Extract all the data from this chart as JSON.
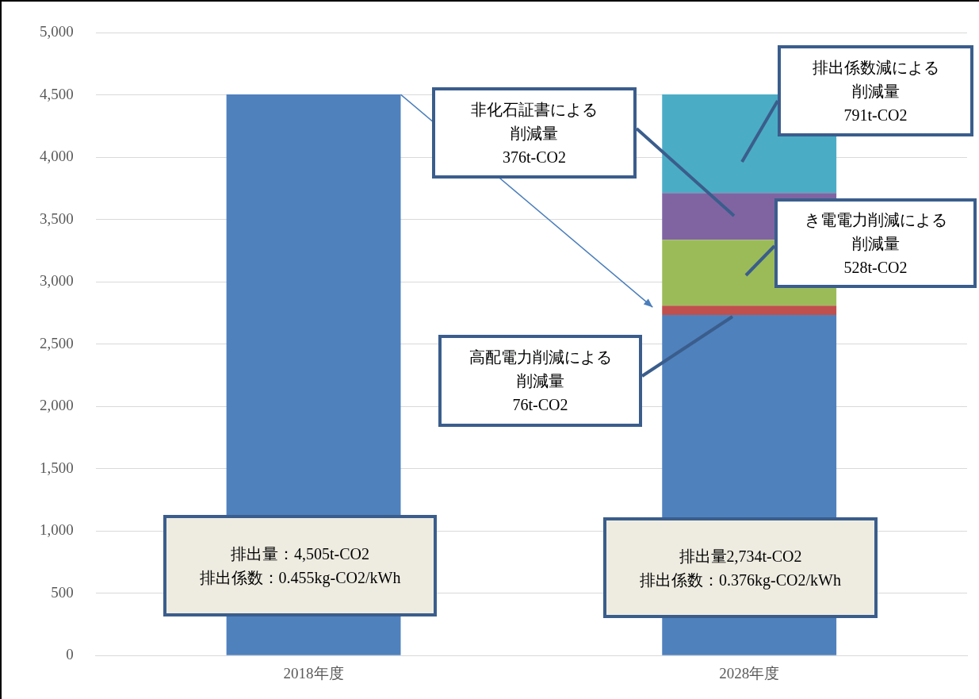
{
  "chart_data": {
    "type": "bar",
    "stacked": true,
    "categories": [
      "2018年度",
      "2028年度"
    ],
    "series": [
      {
        "color": "#4f81bd",
        "values": [
          4505,
          2734
        ]
      },
      {
        "color": "#c0504d",
        "values": [
          null,
          76
        ]
      },
      {
        "color": "#9bbb59",
        "values": [
          null,
          528
        ]
      },
      {
        "color": "#8064a2",
        "values": [
          null,
          376
        ]
      },
      {
        "color": "#4bacc6",
        "values": [
          null,
          791
        ]
      }
    ],
    "ylim": [
      0,
      5000
    ],
    "yticks": [
      {
        "value": 0,
        "label": "0"
      },
      {
        "value": 500,
        "label": "500"
      },
      {
        "value": 1000,
        "label": "1,000"
      },
      {
        "value": 1500,
        "label": "1,500"
      },
      {
        "value": 2000,
        "label": "2,000"
      },
      {
        "value": 2500,
        "label": "2,500"
      },
      {
        "value": 3000,
        "label": "3,000"
      },
      {
        "value": 3500,
        "label": "3,500"
      },
      {
        "value": 4000,
        "label": "4,000"
      },
      {
        "value": 4500,
        "label": "4,500"
      },
      {
        "value": 5000,
        "label": "5,000"
      }
    ],
    "grid": "y",
    "annotations": [
      "非化石証書による削減量\n376t-CO2",
      "排出係数減による削減量\n791t-CO2",
      "き電電力削減による削減量\n528t-CO2",
      "高配電力削減による削減量\n76t-CO2",
      "排出量：4,505t-CO2\n排出係数：0.455kg-CO2/kWh",
      "排出量2,734t-CO2\n排出係数：0.376kg-CO2/kWh"
    ]
  }
}
